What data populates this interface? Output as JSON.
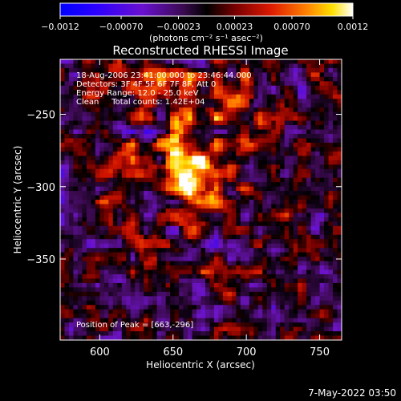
{
  "chart_data": {
    "type": "heatmap",
    "title": "Reconstructed RHESSI Image",
    "xlabel": "Heliocentric X (arcsec)",
    "ylabel": "Heliocentric Y (arcsec)",
    "xlim": [
      573,
      765
    ],
    "ylim": [
      -406,
      -212
    ],
    "x_ticks": [
      600,
      650,
      700,
      750
    ],
    "y_ticks": [
      -250,
      -300,
      -350
    ],
    "colorbar": {
      "ticks": [
        -0.0012,
        -0.0007,
        -0.00023,
        0.00023,
        0.0007,
        0.0012
      ],
      "tick_labels": [
        "-0.0012",
        "-0.00070",
        "-0.00023",
        "0.00023",
        "0.00070",
        "0.0012"
      ],
      "range": [
        -0.0012,
        0.0012
      ],
      "unit_label": "(photons cm⁻² s⁻¹ asec⁻²)"
    },
    "annotations": [
      "18-Aug-2006 23:41:00.000 to 23:46:44.000",
      "Detectors: 3F 4F 5F 6F 7F 8F, Att 0",
      "Energy Range: 12.0 - 25.0 keV",
      "Clean     Total counts: 1.42E+04"
    ],
    "peak_label": "Position of Peak = [663,-296]",
    "peak": [
      663,
      -296
    ],
    "peak_value": 0.0012
  },
  "footer": {
    "timestamp": "7-May-2022 03:50"
  }
}
